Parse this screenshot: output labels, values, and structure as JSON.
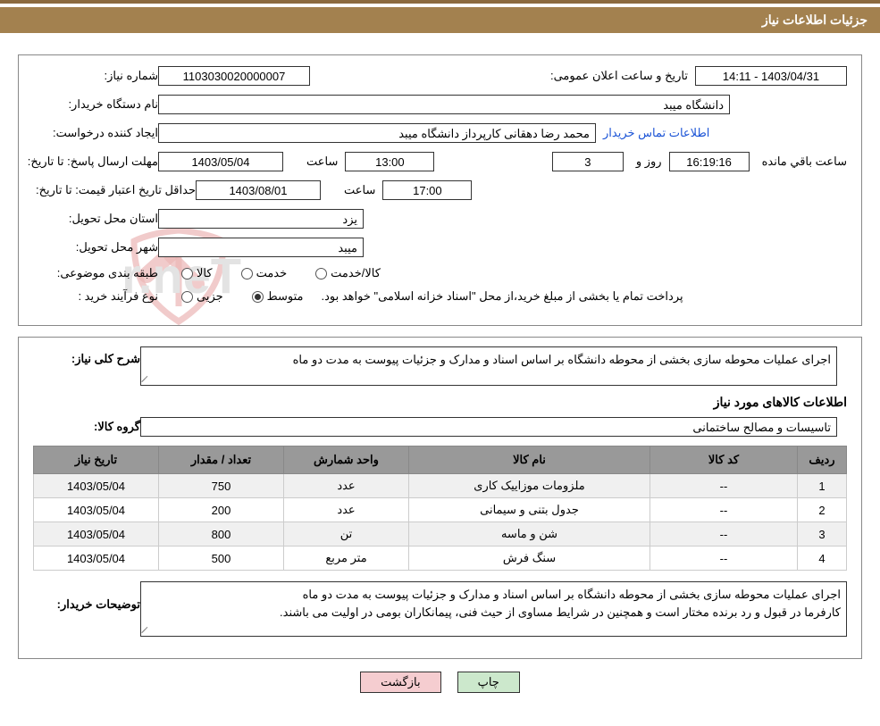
{
  "header": {
    "title": "جزئیات اطلاعات نیاز"
  },
  "labels": {
    "need_no": "شماره نیاز:",
    "announce_dt": "تاریخ و ساعت اعلان عمومی:",
    "buyer_org": "نام دستگاه خریدار:",
    "requester": "ایجاد کننده درخواست:",
    "contact_link": "اطلاعات تماس خریدار",
    "reply_deadline": "مهلت ارسال پاسخ: تا تاریخ:",
    "hour": "ساعت",
    "days_and": "روز و",
    "hours_remain": "ساعت باقي مانده",
    "price_validity": "حداقل تاریخ اعتبار قیمت: تا تاریخ:",
    "delivery_province": "استان محل تحویل:",
    "delivery_city": "شهر محل تحویل:",
    "subject_class": "طبقه بندی موضوعی:",
    "purchase_type": "نوع فرآیند خرید :",
    "general_desc": "شرح کلی نیاز:",
    "goods_info": "اطلاعات کالاهای مورد نیاز",
    "goods_group": "گروه کالا:",
    "buyer_notes": "توضیحات خریدار:"
  },
  "fields": {
    "need_no": "1103030020000007",
    "announce_dt": "1403/04/31 - 14:11",
    "buyer_org": "دانشگاه میبد",
    "requester": "محمد رضا دهقانی کارپرداز دانشگاه میبد",
    "reply_date": "1403/05/04",
    "reply_time": "13:00",
    "days_remaining": "3",
    "time_remaining": "16:19:16",
    "price_valid_date": "1403/08/01",
    "price_valid_time": "17:00",
    "province": "یزد",
    "city": "میبد",
    "general_desc": "اجرای عملیات محوطه سازی بخشی از محوطه دانشگاه بر اساس اسناد و مدارک و جزئیات پیوست به مدت دو ماه",
    "goods_group": "تاسیسات و مصالح ساختمانی",
    "buyer_notes": "اجرای عملیات محوطه سازی بخشی از محوطه دانشگاه بر اساس اسناد و مدارک و جزئیات پیوست به مدت دو ماه\nکارفرما در قبول و رد برنده مختار است و همچنین در شرایط مساوی از حیث فنی، پیمانکاران بومی در اولیت می باشند."
  },
  "subject_class": {
    "options": [
      "کالا",
      "خدمت",
      "کالا/خدمت"
    ],
    "selected": null
  },
  "purchase_type": {
    "options": [
      "جزیی",
      "متوسط"
    ],
    "selected": 1,
    "suffix": "پرداخت تمام یا بخشی از مبلغ خرید،از محل \"اسناد خزانه اسلامی\" خواهد بود."
  },
  "table": {
    "headers": [
      "ردیف",
      "کد کالا",
      "نام کالا",
      "واحد شمارش",
      "تعداد / مقدار",
      "تاریخ نیاز"
    ],
    "col_classes": [
      "col-idx",
      "col-code",
      "col-name",
      "col-unit",
      "col-qty",
      "col-date"
    ],
    "rows": [
      [
        "1",
        "--",
        "ملزومات موزاییک کاری",
        "عدد",
        "750",
        "1403/05/04"
      ],
      [
        "2",
        "--",
        "جدول بتنی و سیمانی",
        "عدد",
        "200",
        "1403/05/04"
      ],
      [
        "3",
        "--",
        "شن و ماسه",
        "تن",
        "800",
        "1403/05/04"
      ],
      [
        "4",
        "--",
        "سنگ فرش",
        "متر مربع",
        "500",
        "1403/05/04"
      ]
    ]
  },
  "buttons": {
    "print": "چاپ",
    "back": "بازگشت"
  },
  "watermark": {
    "text": "AriaTender.neT",
    "shield_stroke": "#c62f2d"
  }
}
